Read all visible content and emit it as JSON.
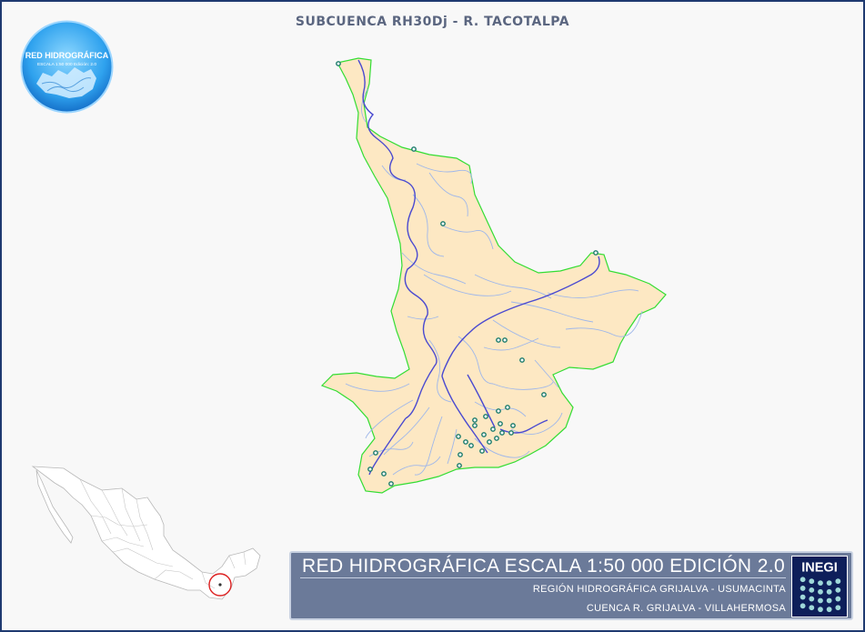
{
  "map": {
    "title": "SUBCUENCA RH30Dj - R. TACOTALPA",
    "colors": {
      "basin_fill": "#fde8c3",
      "basin_outline": "#33dd33",
      "main_river": "#4a4ad0",
      "tributary": "#9fb7ea",
      "station": "#1a7a6a"
    },
    "logo": {
      "line1": "RED HIDROGRÁFICA",
      "line2": "ESCALA 1:50 000  Edición: 2.0"
    },
    "inset": {
      "description_icon": "mexico-locator-map",
      "highlight_color": "#dd2222"
    },
    "banner": {
      "main": "RED HIDROGRÁFICA ESCALA 1:50 000 EDICIÓN 2.0",
      "region": "REGIÓN HIDROGRÁFICA GRIJALVA - USUMACINTA",
      "cuenca": "CUENCA R. GRIJALVA - VILLAHERMOSA",
      "brand": "INEGI"
    }
  }
}
